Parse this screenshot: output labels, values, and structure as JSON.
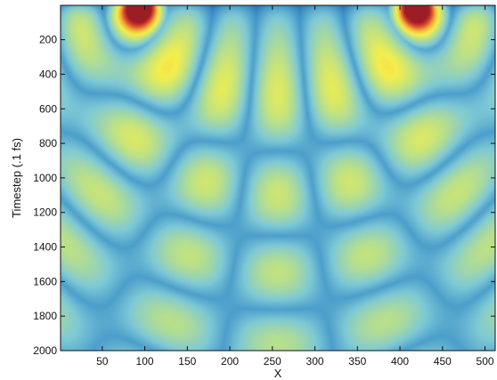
{
  "chart_data": {
    "type": "heatmap",
    "title": "",
    "xlabel": "X",
    "ylabel": "Timestep (.1 fs)",
    "xlim": [
      1,
      512
    ],
    "ylim": [
      2000,
      1
    ],
    "y_axis_direction": "top-to-bottom increasing",
    "xticks": [
      50,
      100,
      150,
      200,
      250,
      300,
      350,
      400,
      450,
      500
    ],
    "yticks": [
      200,
      400,
      600,
      800,
      1000,
      1200,
      1400,
      1600,
      1800,
      2000
    ],
    "colormap": "jet",
    "colormap_stops": [
      "#243d78",
      "#3a8fc8",
      "#7ec9d6",
      "#b9e08a",
      "#f4ef4c",
      "#f2b03a",
      "#dc4a30",
      "#9c1e24"
    ],
    "grid": false,
    "colorbar": false,
    "sources": [
      {
        "x": 95,
        "label": "left wave source"
      },
      {
        "x": 418,
        "label": "right wave source"
      }
    ],
    "features": [
      {
        "kind": "source-peak",
        "x": 95,
        "t_range": [
          1,
          150
        ],
        "level": "high"
      },
      {
        "kind": "source-peak",
        "x": 418,
        "t_range": [
          1,
          150
        ],
        "level": "high"
      },
      {
        "kind": "interference-maximum",
        "x": 258,
        "t_range": [
          400,
          1200
        ],
        "level": "medium-high"
      },
      {
        "kind": "interference-maximum",
        "x": 185,
        "t_range": [
          400,
          1000
        ],
        "level": "medium"
      },
      {
        "kind": "interference-maximum",
        "x": 330,
        "t_range": [
          400,
          1000
        ],
        "level": "medium"
      },
      {
        "kind": "node-line",
        "x": 295,
        "t_range": [
          200,
          2000
        ],
        "level": "low"
      },
      {
        "kind": "node-line",
        "x": 220,
        "t_range": [
          200,
          2000
        ],
        "level": "low"
      }
    ]
  }
}
